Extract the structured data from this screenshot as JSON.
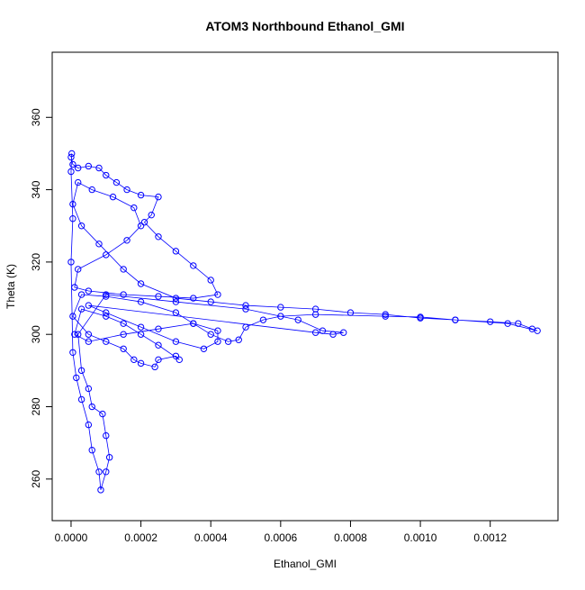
{
  "chart_data": {
    "type": "scatter-line",
    "title": "ATOM3 Northbound Ethanol_GMI",
    "x_label": "Ethanol_GMI",
    "y_label": "Theta (K)",
    "color": "#0000ff",
    "xlim": [
      -5.4e-05,
      0.001394
    ],
    "ylim": [
      248.5,
      378
    ],
    "xticks": [
      {
        "value": 0,
        "label": "0.0000"
      },
      {
        "value": 0.0002,
        "label": "0.0002"
      },
      {
        "value": 0.0004,
        "label": "0.0004"
      },
      {
        "value": 0.0006,
        "label": "0.0006"
      },
      {
        "value": 0.0008,
        "label": "0.0008"
      },
      {
        "value": 0.001,
        "label": "0.0010"
      },
      {
        "value": 0.0012,
        "label": "0.0012"
      }
    ],
    "yticks": [
      260,
      280,
      300,
      320,
      340,
      360
    ],
    "x": [
      0,
      5e-06,
      2e-05,
      5e-05,
      8e-05,
      0.0001,
      0.00013,
      0.00016,
      0.0002,
      0.00025,
      0.00023,
      0.00021,
      0.00025,
      0.0003,
      0.00035,
      0.0004,
      0.00042,
      0.00035,
      0.00025,
      0.00015,
      5e-05,
      1e-05,
      2e-05,
      0.0001,
      0.00016,
      0.0002,
      0.00018,
      0.00012,
      6e-05,
      2e-05,
      5e-06,
      3e-05,
      8e-05,
      0.00015,
      0.0002,
      0.0003,
      0.0004,
      0.0005,
      0.0006,
      0.0007,
      0.0008,
      0.0009,
      0.001,
      0.0011,
      0.0012,
      0.00128,
      0.00132,
      0.001335,
      0.00125,
      0.0011,
      0.001,
      0.0009,
      0.0007,
      0.0006,
      0.00055,
      0.0005,
      0.00048,
      0.00045,
      0.0004,
      0.00035,
      0.0003,
      0.0002,
      0.0001,
      3e-05,
      5e-06,
      5e-05,
      0.0001,
      0.00015,
      0.00018,
      0.0002,
      0.00024,
      0.00025,
      0.0003,
      0.00031,
      0.00025,
      0.0002,
      0.00015,
      0.0001,
      3e-05,
      1e-05,
      5e-05,
      0.00015,
      0.00025,
      0.00035,
      0.00042,
      0.00042,
      0.00038,
      0.0003,
      0.0002,
      0.0001,
      5e-05,
      0.0007,
      0.00075,
      0.00078,
      0.00072,
      0.00065,
      0.0005,
      0.0003,
      0.0001,
      2e-05,
      3e-05,
      5e-05,
      6e-05,
      9e-05,
      0.0001,
      0.00011,
      0.0001,
      8.5e-05,
      8e-05,
      6e-05,
      5e-05,
      3e-05,
      1.5e-05,
      5e-06,
      0,
      5e-06,
      0,
      2e-06
    ],
    "y": [
      349,
      347,
      346,
      346.5,
      346,
      344,
      342,
      340,
      338.5,
      338,
      333,
      331,
      327,
      323,
      319,
      315,
      311,
      310,
      310.5,
      311,
      312,
      313,
      318,
      322,
      326,
      330,
      335,
      338,
      340,
      342,
      336,
      330,
      325,
      318,
      314,
      310,
      309,
      308,
      307.5,
      307,
      306,
      305.5,
      304.5,
      304,
      303.5,
      303,
      301.5,
      301,
      303,
      304,
      304.8,
      305,
      305.5,
      305,
      304,
      302,
      298.5,
      298,
      300,
      303,
      306,
      309,
      310.5,
      311,
      305,
      300,
      298,
      296,
      293,
      292,
      291,
      293,
      294,
      293,
      297,
      300,
      303,
      305,
      307,
      300,
      298,
      300,
      301.5,
      303,
      301,
      298,
      296,
      298,
      302,
      306,
      308,
      300.5,
      300,
      300.5,
      301,
      304,
      307,
      309,
      311,
      300,
      290,
      285,
      280,
      278,
      272,
      266,
      262,
      257,
      262,
      268,
      275,
      282,
      288,
      295,
      320,
      332,
      345,
      350
    ]
  }
}
